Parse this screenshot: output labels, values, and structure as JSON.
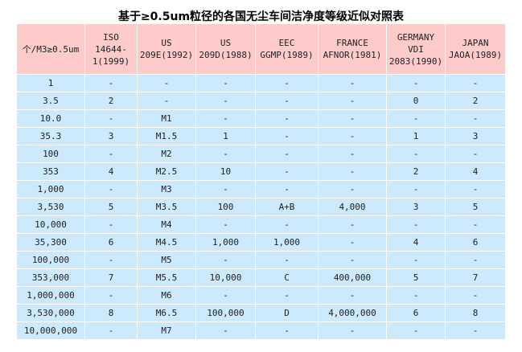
{
  "title": "基于≥0.5um粒径的各国无尘车间洁净度等级近似对照表",
  "headers": [
    [
      "个/M3≥0.5um"
    ],
    [
      "ISO",
      "14644-",
      "1(1999)"
    ],
    [
      "US",
      "209E(1992)"
    ],
    [
      "US",
      "209D(1988)"
    ],
    [
      "EEC",
      "GGMP(1989)"
    ],
    [
      "FRANCE",
      "AFNOR(1981)"
    ],
    [
      "GERMANY",
      "VDI",
      "2083(1990)"
    ],
    [
      "JAPAN",
      "JAOA(1989)"
    ]
  ],
  "rows": [
    [
      "1",
      "-",
      "-",
      "-",
      "-",
      "-",
      "-",
      "-"
    ],
    [
      "3.5",
      "2",
      "-",
      "-",
      "-",
      "-",
      "0",
      "2"
    ],
    [
      "10.0",
      "-",
      "M1",
      "-",
      "-",
      "-",
      "-",
      "-"
    ],
    [
      "35.3",
      "3",
      "M1.5",
      "1",
      "-",
      "-",
      "1",
      "3"
    ],
    [
      "100",
      "-",
      "M2",
      "-",
      "-",
      "-",
      "-",
      "-"
    ],
    [
      "353",
      "4",
      "M2.5",
      "10",
      "-",
      "-",
      "2",
      "4"
    ],
    [
      "1,000",
      "-",
      "M3",
      "-",
      "-",
      "-",
      "-",
      "-"
    ],
    [
      "3,530",
      "5",
      "M3.5",
      "100",
      "A+B",
      "4,000",
      "3",
      "5"
    ],
    [
      "10,000",
      "-",
      "M4",
      "-",
      "-",
      "-",
      "-",
      "-"
    ],
    [
      "35,300",
      "6",
      "M4.5",
      "1,000",
      "1,000",
      "-",
      "4",
      "6"
    ],
    [
      "100,000",
      "-",
      "M5",
      "-",
      "-",
      "-",
      "-",
      "-"
    ],
    [
      "353,000",
      "7",
      "M5.5",
      "10,000",
      "C",
      "400,000",
      "5",
      "7"
    ],
    [
      "1,000,000",
      "-",
      "M6",
      "-",
      "-",
      "-",
      "-",
      "-"
    ],
    [
      "3,530,000",
      "8",
      "M6.5",
      "100,000",
      "D",
      "4,000,000",
      "6",
      "8"
    ],
    [
      "10,000,000",
      "-",
      "M7",
      "-",
      "-",
      "-",
      "-",
      "-"
    ]
  ],
  "colors": {
    "header_bg": "#fecbcb",
    "row_bg": "#cce9fd"
  }
}
